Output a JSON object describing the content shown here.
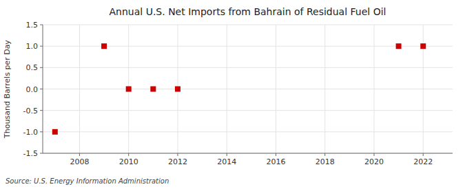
{
  "chart_data": {
    "type": "scatter",
    "title": "Annual U.S. Net Imports from Bahrain of Residual Fuel Oil",
    "ylabel": "Thousand Barrels per Day",
    "source": "Source: U.S. Energy Information Administration",
    "x": [
      2007,
      2009,
      2010,
      2011,
      2012,
      2021,
      2022
    ],
    "values": [
      -1.0,
      1.0,
      0.0,
      0.0,
      0.0,
      1.0,
      1.0
    ],
    "color": "#cc0000",
    "marker": "square",
    "xlim": [
      2006.5,
      2023.2
    ],
    "ylim": [
      -1.5,
      1.5
    ],
    "xticks": [
      2008,
      2010,
      2012,
      2014,
      2016,
      2018,
      2020,
      2022
    ],
    "yticks": [
      -1.5,
      {
        "value": -1.0,
        "label": "-1.0"
      },
      -0.5,
      {
        "value": 0.0,
        "label": "0.0"
      },
      0.5,
      {
        "value": 1.0,
        "label": "1.0"
      },
      1.5
    ],
    "grid": true
  }
}
